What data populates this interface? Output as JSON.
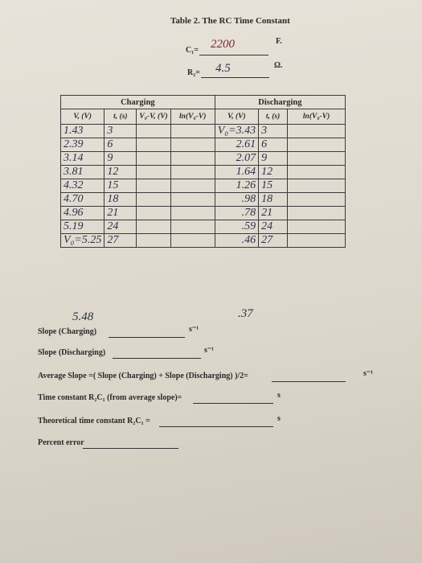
{
  "header": {
    "title": "Table 2. The RC Time Constant",
    "capacitance": {
      "label": "C₁=",
      "value": "2200",
      "unit": "F."
    },
    "resistance": {
      "label": "R₂=",
      "value": "4.5",
      "unit": "Ω."
    }
  },
  "table": {
    "groups": [
      "Charging",
      "Discharging"
    ],
    "columns": [
      "V, (V)",
      "t, (s)",
      "V₀-V, (V)",
      "ln(V₀-V)",
      "V, (V)",
      "t, (s)",
      "ln(V₀-V)"
    ],
    "charging_rows": [
      [
        "1.43",
        "3"
      ],
      [
        "2.39",
        "6"
      ],
      [
        "3.14",
        "9"
      ],
      [
        "3.81",
        "12"
      ],
      [
        "4.32",
        "15"
      ],
      [
        "4.70",
        "18"
      ],
      [
        "4.96",
        "21"
      ],
      [
        "5.19",
        "24"
      ],
      [
        "V₀=5.25",
        "27"
      ]
    ],
    "discharging_rows": [
      [
        "V₀=3.43",
        "3"
      ],
      [
        "2.61",
        "6"
      ],
      [
        "2.07",
        "9"
      ],
      [
        "1.64",
        "12"
      ],
      [
        "1.26",
        "15"
      ],
      [
        ".98",
        "18"
      ],
      [
        ".78",
        "21"
      ],
      [
        ".59",
        "24"
      ],
      [
        ".46",
        "27"
      ]
    ],
    "charging_final": "5.48",
    "discharging_final": ".37"
  },
  "questions": [
    {
      "label": "Slope (Charging)",
      "unit": "s⁻¹"
    },
    {
      "label": "Slope (Discharging)",
      "unit": "s⁻¹"
    },
    {
      "label": "Average Slope =( Slope (Charging) + Slope (Discharging) )/2=",
      "unit": "s⁻¹"
    },
    {
      "label": "Time constant R₂C₁ (from average slope)=",
      "unit": "s"
    },
    {
      "label": "Theoretical time constant R₂C₁ =",
      "unit": "s"
    },
    {
      "label": "Percent error"
    }
  ]
}
